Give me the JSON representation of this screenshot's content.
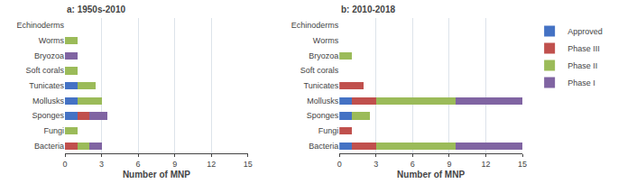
{
  "chart_data": [
    {
      "type": "bar",
      "title": "a: 1950s-2010",
      "orientation": "horizontal",
      "stacked": true,
      "grid": true,
      "categories": [
        "Echinoderms",
        "Worms",
        "Bryozoa",
        "Soft corals",
        "Tunicates",
        "Mollusks",
        "Sponges",
        "Fungi",
        "Bacteria"
      ],
      "series": [
        {
          "name": "Approved",
          "color": "#4472C4",
          "values": [
            0,
            0,
            0,
            0,
            1.0,
            1.0,
            1.0,
            0,
            0
          ]
        },
        {
          "name": "Phase III",
          "color": "#C0504D",
          "values": [
            0,
            0,
            0,
            0,
            0,
            0,
            1.0,
            0,
            1.0
          ]
        },
        {
          "name": "Phase II",
          "color": "#9BBB59",
          "values": [
            0,
            1.0,
            0,
            1.0,
            1.5,
            2.0,
            0,
            1.0,
            1.0
          ]
        },
        {
          "name": "Phase I",
          "color": "#8064A2",
          "values": [
            0,
            0,
            1.0,
            0,
            0,
            0,
            1.5,
            0,
            1.0
          ]
        }
      ],
      "xlabel": "Number of MNP",
      "xlim": [
        0,
        15
      ],
      "xticks": [
        0,
        3,
        6,
        9,
        12,
        15
      ]
    },
    {
      "type": "bar",
      "title": "b: 2010-2018",
      "orientation": "horizontal",
      "stacked": true,
      "grid": true,
      "legend": "right",
      "categories": [
        "Echinoderms",
        "Worms",
        "Bryozoa",
        "Soft corals",
        "Tunicates",
        "Mollusks",
        "Sponges",
        "Fungi",
        "Bacteria"
      ],
      "series": [
        {
          "name": "Approved",
          "color": "#4472C4",
          "values": [
            0,
            0,
            0,
            0,
            0,
            1.0,
            1.0,
            0,
            1.0
          ]
        },
        {
          "name": "Phase III",
          "color": "#C0504D",
          "values": [
            0,
            0,
            0,
            0,
            2.0,
            2.0,
            0,
            1.0,
            2.0
          ]
        },
        {
          "name": "Phase II",
          "color": "#9BBB59",
          "values": [
            0,
            0,
            1.0,
            0,
            0,
            6.5,
            1.5,
            0,
            6.5
          ]
        },
        {
          "name": "Phase I",
          "color": "#8064A2",
          "values": [
            0,
            0,
            0,
            0,
            0,
            5.5,
            0,
            0,
            5.5
          ]
        }
      ],
      "xlabel": "Number of MNP",
      "xlim": [
        0,
        15
      ],
      "xticks": [
        0,
        3,
        6,
        9,
        12,
        15
      ]
    }
  ]
}
